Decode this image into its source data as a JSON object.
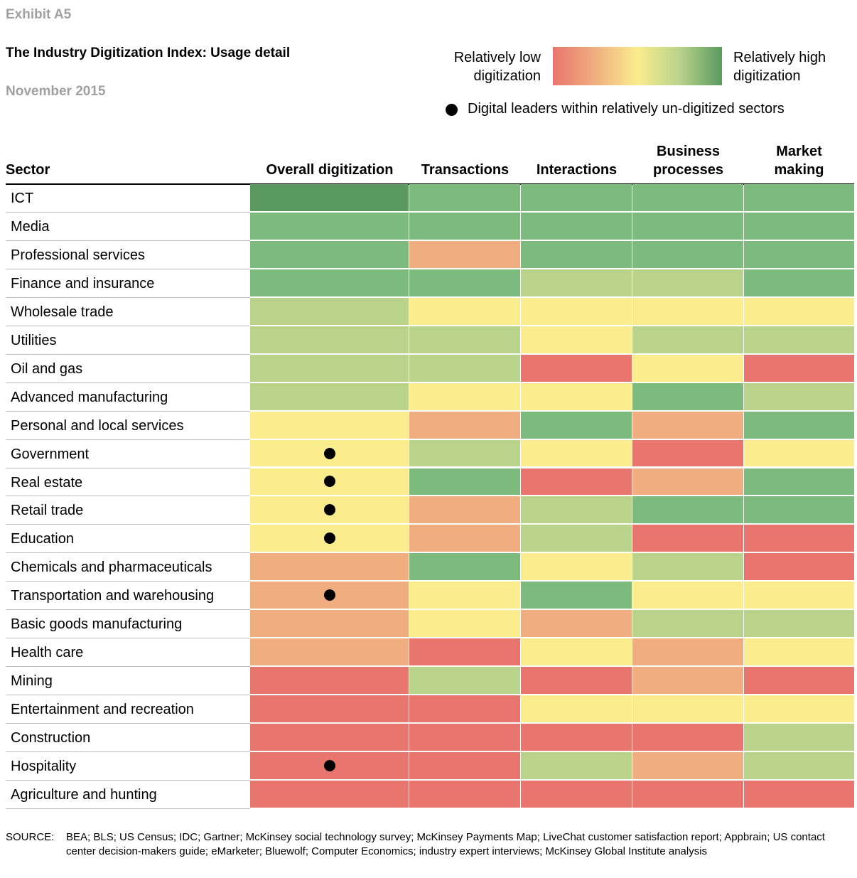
{
  "exhibit_label": "Exhibit A5",
  "title": "The Industry Digitization Index: Usage detail",
  "date": "November 2015",
  "legend": {
    "low_label_line1": "Relatively low",
    "low_label_line2": "digitization",
    "high_label_line1": "Relatively high",
    "high_label_line2": "digitization",
    "dot_label": "Digital leaders within relatively un-digitized sectors"
  },
  "colors": {
    "scale": [
      "#e8766e",
      "#f0ae80",
      "#fbec8e",
      "#b9d38b",
      "#7dba7e",
      "#5a9a60"
    ],
    "scale_meaning": "0 = relatively low digitization, 5 = relatively high digitization"
  },
  "headers": {
    "sector": "Sector",
    "overall": "Overall digitization",
    "transactions": "Transactions",
    "interactions": "Interactions",
    "business_line1": "Business",
    "business_line2": "processes",
    "market_line1": "Market",
    "market_line2": "making"
  },
  "chart_data": {
    "type": "heatmap",
    "columns": [
      "Overall digitization",
      "Transactions",
      "Interactions",
      "Business processes",
      "Market making"
    ],
    "rows": [
      {
        "sector": "ICT",
        "levels": [
          5,
          4,
          4,
          4,
          4
        ],
        "leader": false
      },
      {
        "sector": "Media",
        "levels": [
          4,
          4,
          4,
          4,
          4
        ],
        "leader": false
      },
      {
        "sector": "Professional services",
        "levels": [
          4,
          1,
          4,
          4,
          4
        ],
        "leader": false
      },
      {
        "sector": "Finance and insurance",
        "levels": [
          4,
          4,
          3,
          3,
          4
        ],
        "leader": false
      },
      {
        "sector": "Wholesale trade",
        "levels": [
          3,
          2,
          2,
          2,
          2
        ],
        "leader": false
      },
      {
        "sector": "Utilities",
        "levels": [
          3,
          3,
          2,
          3,
          3
        ],
        "leader": false
      },
      {
        "sector": "Oil and gas",
        "levels": [
          3,
          3,
          0,
          2,
          0
        ],
        "leader": false
      },
      {
        "sector": "Advanced manufacturing",
        "levels": [
          3,
          2,
          2,
          4,
          3
        ],
        "leader": false
      },
      {
        "sector": "Personal and local services",
        "levels": [
          2,
          1,
          4,
          1,
          4
        ],
        "leader": false
      },
      {
        "sector": "Government",
        "levels": [
          2,
          3,
          2,
          0,
          2
        ],
        "leader": true
      },
      {
        "sector": "Real estate",
        "levels": [
          2,
          4,
          0,
          1,
          4
        ],
        "leader": true
      },
      {
        "sector": "Retail trade",
        "levels": [
          2,
          1,
          3,
          4,
          4
        ],
        "leader": true
      },
      {
        "sector": "Education",
        "levels": [
          2,
          1,
          3,
          0,
          0
        ],
        "leader": true
      },
      {
        "sector": "Chemicals and pharmaceuticals",
        "levels": [
          1,
          4,
          2,
          3,
          0
        ],
        "leader": false
      },
      {
        "sector": "Transportation and warehousing",
        "levels": [
          1,
          2,
          4,
          2,
          2
        ],
        "leader": true
      },
      {
        "sector": "Basic goods manufacturing",
        "levels": [
          1,
          2,
          1,
          3,
          3
        ],
        "leader": false
      },
      {
        "sector": "Health care",
        "levels": [
          1,
          0,
          2,
          1,
          2
        ],
        "leader": false
      },
      {
        "sector": "Mining",
        "levels": [
          0,
          3,
          0,
          1,
          0
        ],
        "leader": false
      },
      {
        "sector": "Entertainment and recreation",
        "levels": [
          0,
          0,
          2,
          2,
          2
        ],
        "leader": false
      },
      {
        "sector": "Construction",
        "levels": [
          0,
          0,
          0,
          0,
          3
        ],
        "leader": false
      },
      {
        "sector": "Hospitality",
        "levels": [
          0,
          0,
          3,
          1,
          3
        ],
        "leader": true
      },
      {
        "sector": "Agriculture and hunting",
        "levels": [
          0,
          0,
          0,
          0,
          0
        ],
        "leader": false
      }
    ]
  },
  "source": {
    "label": "SOURCE:",
    "text": "BEA; BLS; US Census; IDC; Gartner; McKinsey social technology survey; McKinsey Payments Map; LiveChat customer satisfaction report; Appbrain; US contact center decision-makers guide; eMarketer; Bluewolf; Computer Economics; industry expert interviews; McKinsey Global Institute analysis"
  }
}
